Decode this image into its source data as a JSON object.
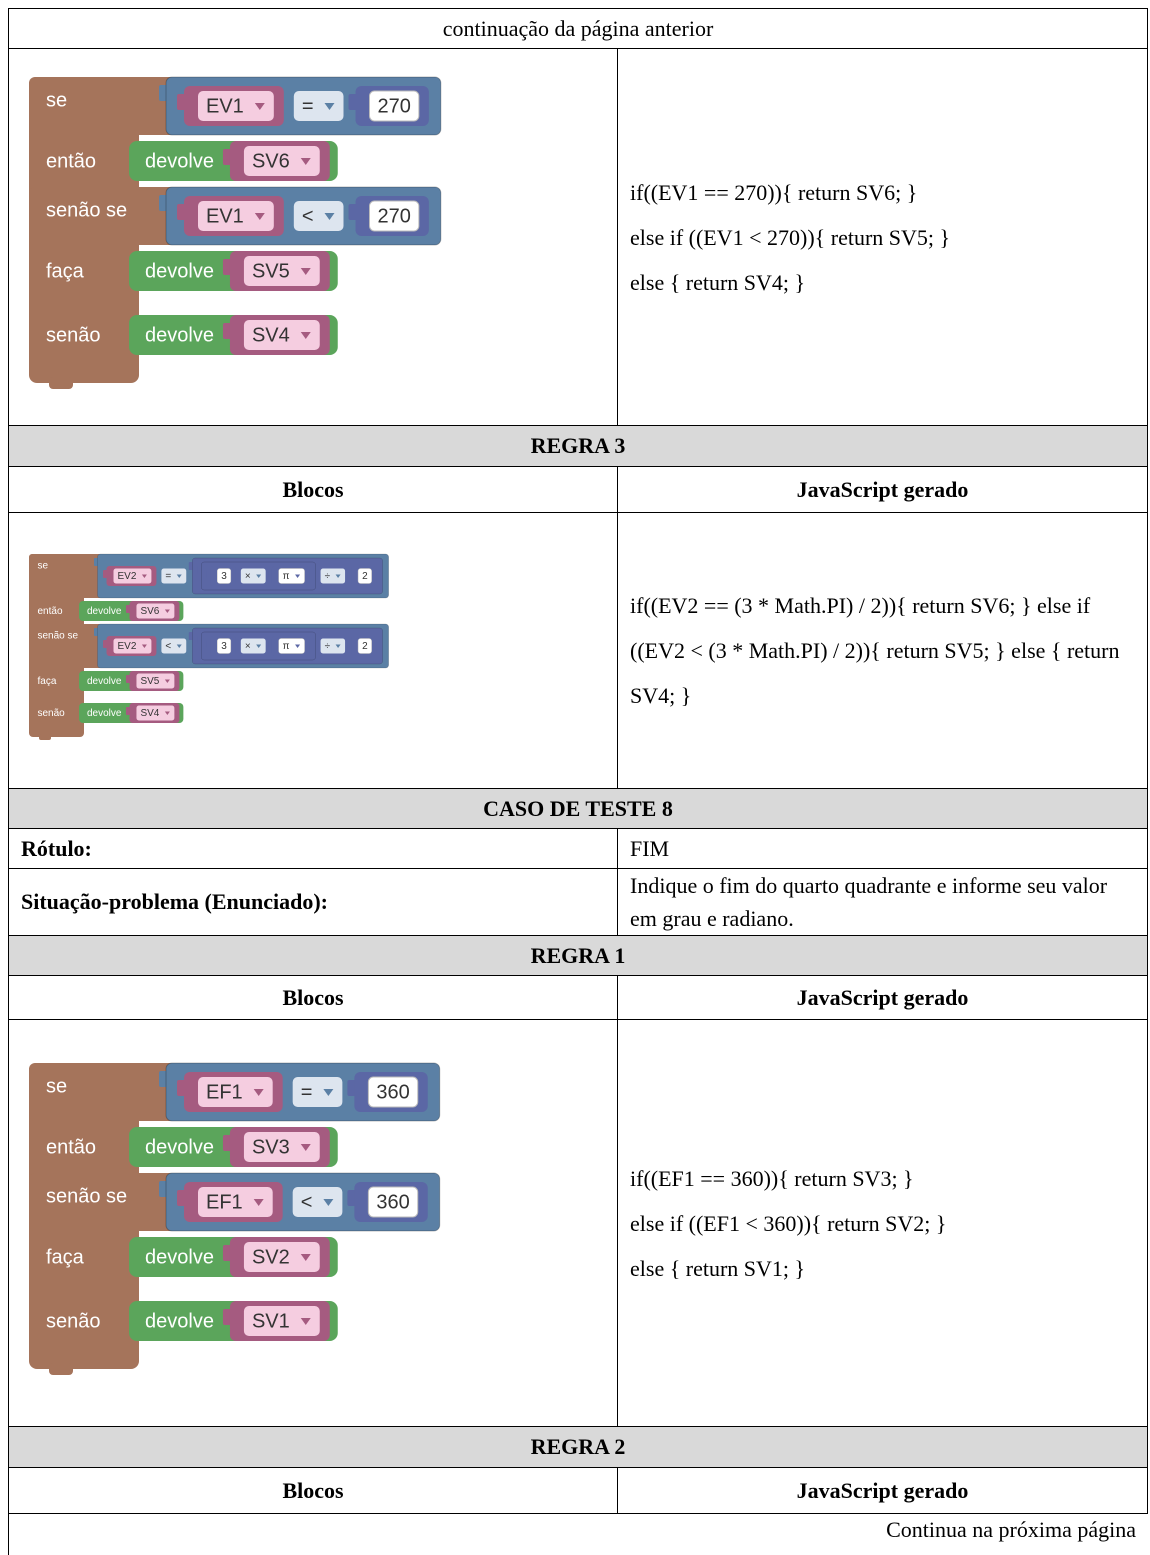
{
  "continued_note": "continuação da página anterior",
  "rule_prev": {
    "blocks": {
      "keywords": [
        "se",
        "então",
        "senão se",
        "faça",
        "senão"
      ],
      "conditions": [
        {
          "left": {
            "text": "EV1",
            "kind": "variable"
          },
          "op": "=",
          "right": {
            "text": "270",
            "kind": "number"
          }
        },
        {
          "left": {
            "text": "EV1",
            "kind": "variable"
          },
          "op": "<",
          "right": {
            "text": "270",
            "kind": "number"
          }
        }
      ],
      "returns": [
        {
          "word": "devolve",
          "value": {
            "text": "SV6",
            "kind": "variable"
          }
        },
        {
          "word": "devolve",
          "value": {
            "text": "SV5",
            "kind": "variable"
          }
        },
        {
          "word": "devolve",
          "value": {
            "text": "SV4",
            "kind": "variable"
          }
        }
      ]
    },
    "code": [
      "if((EV1 == 270)){ return SV6; }",
      "else if ((EV1 < 270)){ return SV5; }",
      "else { return SV4; }"
    ]
  },
  "rule_3": {
    "title": "REGRA 3",
    "headers": [
      "Blocos",
      "JavaScript gerado"
    ],
    "blocks": {
      "keywords": [
        "se",
        "então",
        "senão se",
        "faça",
        "senão"
      ],
      "conditions": [
        {
          "left": {
            "text": "EV2",
            "kind": "variable"
          },
          "op": "=",
          "right": {
            "left": {
              "left": {
                "text": "3",
                "kind": "number"
              },
              "op": "×",
              "right": {
                "text": "π",
                "kind": "constant"
              }
            },
            "op": "÷",
            "right": {
              "text": "2",
              "kind": "number"
            }
          }
        },
        {
          "left": {
            "text": "EV2",
            "kind": "variable"
          },
          "op": "<",
          "right": {
            "left": {
              "left": {
                "text": "3",
                "kind": "number"
              },
              "op": "×",
              "right": {
                "text": "π",
                "kind": "constant"
              }
            },
            "op": "÷",
            "right": {
              "text": "2",
              "kind": "number"
            }
          }
        }
      ],
      "returns": [
        {
          "word": "devolve",
          "value": {
            "text": "SV6",
            "kind": "variable"
          }
        },
        {
          "word": "devolve",
          "value": {
            "text": "SV5",
            "kind": "variable"
          }
        },
        {
          "word": "devolve",
          "value": {
            "text": "SV4",
            "kind": "variable"
          }
        }
      ]
    },
    "code": "if((EV2 == (3 * Math.PI) / 2)){ return SV6; } else if ((EV2 < (3 * Math.PI) / 2)){ return SV5; } else { return SV4; }"
  },
  "test_case": {
    "title": "CASO DE TESTE 8",
    "label": {
      "key": "Rótulo:",
      "value": "FIM"
    },
    "problem": {
      "key": "Situação-problema (Enunciado):",
      "value": "Indique o fim do quarto quadrante e informe seu valor em grau e radiano."
    }
  },
  "rule_1": {
    "title": "REGRA 1",
    "headers": [
      "Blocos",
      "JavaScript gerado"
    ],
    "blocks": {
      "keywords": [
        "se",
        "então",
        "senão se",
        "faça",
        "senão"
      ],
      "conditions": [
        {
          "left": {
            "text": "EF1",
            "kind": "variable"
          },
          "op": "=",
          "right": {
            "text": "360",
            "kind": "number"
          }
        },
        {
          "left": {
            "text": "EF1",
            "kind": "variable"
          },
          "op": "<",
          "right": {
            "text": "360",
            "kind": "number"
          }
        }
      ],
      "returns": [
        {
          "word": "devolve",
          "value": {
            "text": "SV3",
            "kind": "variable"
          }
        },
        {
          "word": "devolve",
          "value": {
            "text": "SV2",
            "kind": "variable"
          }
        },
        {
          "word": "devolve",
          "value": {
            "text": "SV1",
            "kind": "variable"
          }
        }
      ]
    },
    "code": [
      "if((EF1 == 360)){ return SV3; }",
      "else if ((EF1 < 360)){ return SV2; }",
      "else { return SV1; }"
    ]
  },
  "rule_2": {
    "title": "REGRA 2",
    "headers": [
      "Blocos",
      "JavaScript gerado"
    ]
  },
  "next_note": "Continua na próxima página"
}
